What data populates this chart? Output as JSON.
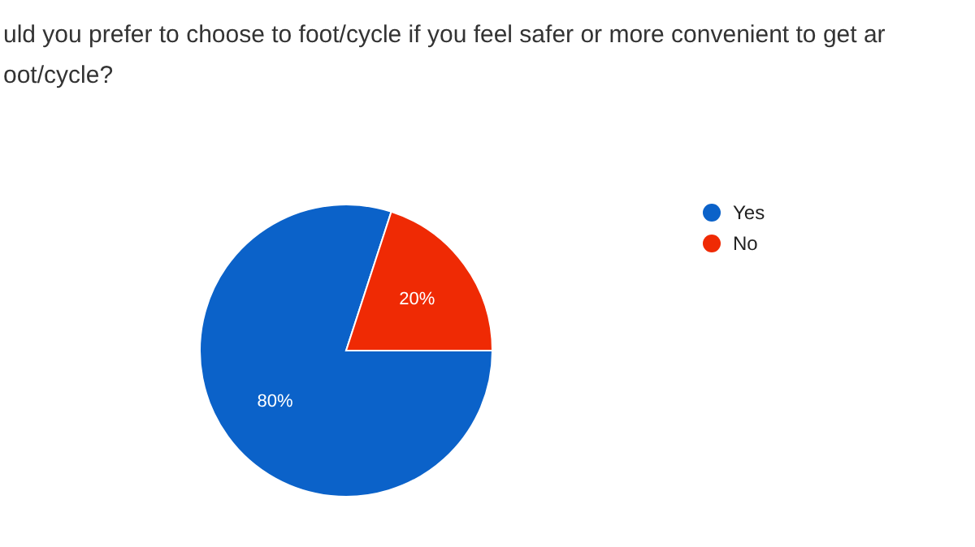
{
  "chart_data": {
    "type": "pie",
    "title": "uld you prefer to choose to foot/cycle if you feel safer or more convenient to get ar\noot/cycle?",
    "categories": [
      "Yes",
      "No"
    ],
    "values": [
      80,
      20
    ],
    "colors": [
      "#0b62c9",
      "#ef2a04"
    ],
    "value_labels": [
      "80%",
      "20%"
    ],
    "legend": "right"
  }
}
